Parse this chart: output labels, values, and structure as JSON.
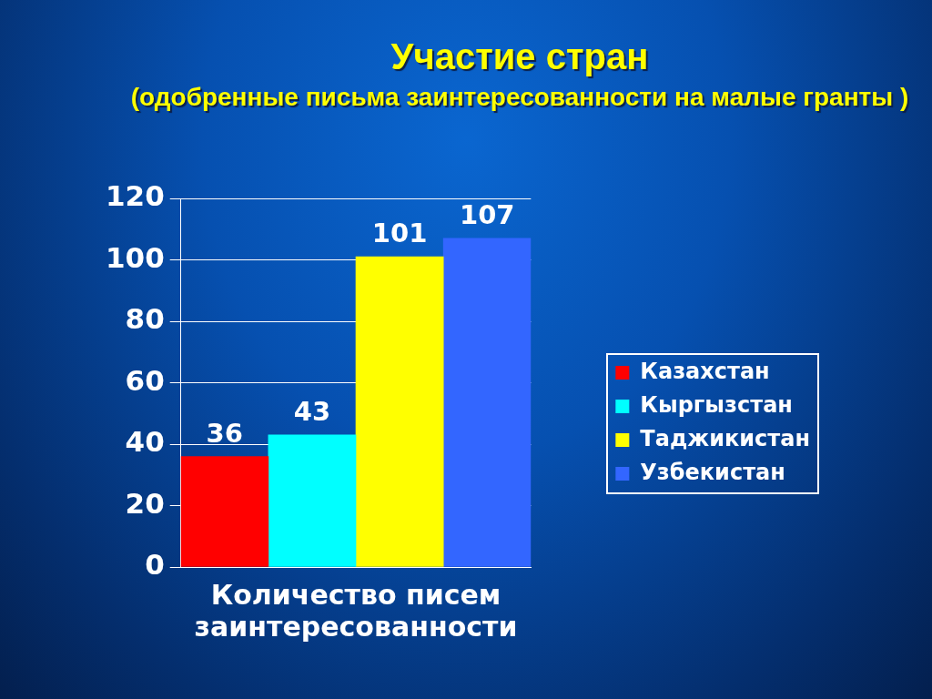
{
  "chart_data": {
    "type": "bar",
    "title": "Участие стран",
    "subtitle": "(одобренные письма заинтересованности на малые гранты )",
    "xlabel": "Количество писем заинтересованности",
    "categories": [
      null,
      null,
      null,
      null
    ],
    "series": [
      {
        "name": "Казахстан",
        "color": "#ff0000",
        "values": [
          36,
          null,
          null,
          null
        ]
      },
      {
        "name": "Кыргызстан",
        "color": "#00ffff",
        "values": [
          null,
          43,
          null,
          null
        ]
      },
      {
        "name": "Таджикистан",
        "color": "#ffff00",
        "values": [
          null,
          null,
          101,
          null
        ]
      },
      {
        "name": "Узбекистан",
        "color": "#3366ff",
        "values": [
          null,
          null,
          null,
          107
        ]
      }
    ],
    "ylim": [
      0,
      120
    ],
    "yticks": [
      0,
      20,
      40,
      60,
      80,
      100,
      120
    ],
    "grid": "y",
    "legend": "right",
    "tick_labels": "y",
    "data_labels": true
  }
}
